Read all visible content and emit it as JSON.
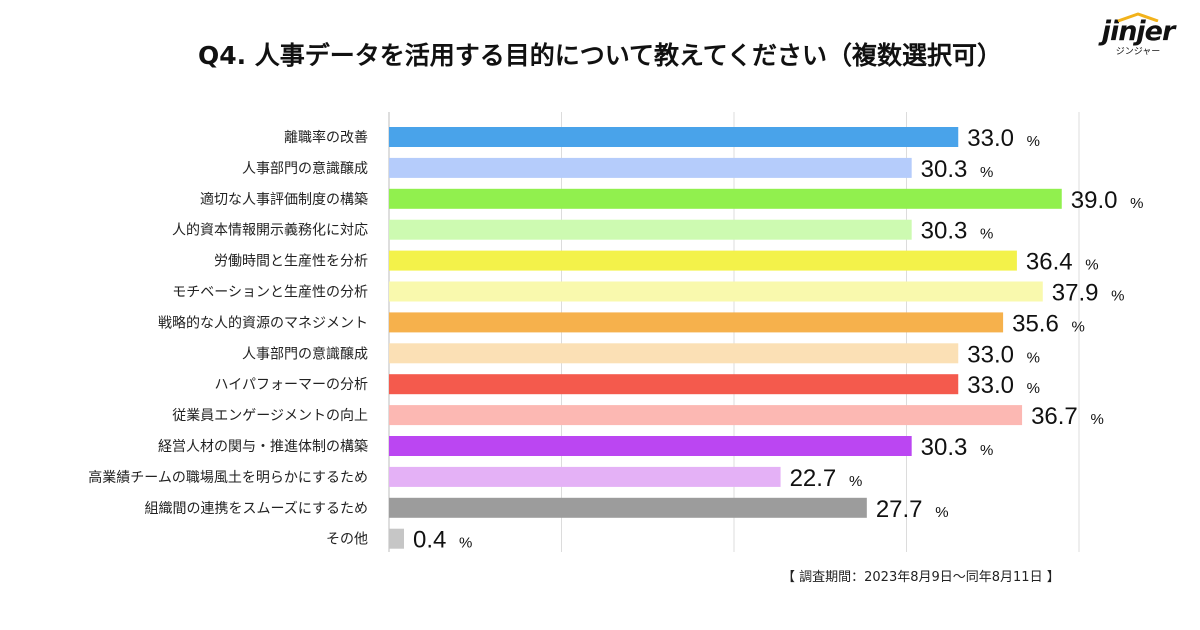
{
  "title": "Q4. 人事データを活用する目的について教えてください（複数選択可）",
  "logo": {
    "name": "jinjer",
    "sub": "ジンジャー"
  },
  "footer": {
    "note": "【 調査期間：2023年8月9日〜同年8月11日 】"
  },
  "chart_data": {
    "type": "bar",
    "orientation": "horizontal",
    "title": "Q4. 人事データを活用する目的について教えてください（複数選択可）",
    "xlabel": "",
    "ylabel": "",
    "xlim": [
      0,
      40
    ],
    "grid": true,
    "unit": "%",
    "categories": [
      "離職率の改善",
      "人事部門の意識醸成",
      "適切な人事評価制度の構築",
      "人的資本情報開示義務化に対応",
      "労働時間と生産性を分析",
      "モチベーションと生産性の分析",
      "戦略的な人的資源のマネジメント",
      "人事部門の意識醸成",
      "ハイパフォーマーの分析",
      "従業員エンゲージメントの向上",
      "経営人材の関与・推進体制の構築",
      "高業績チームの職場風土を明らかにするため",
      "組織間の連携をスムーズにするため",
      "その他"
    ],
    "values": [
      33.0,
      30.3,
      39.0,
      30.3,
      36.4,
      37.9,
      35.6,
      33.0,
      33.0,
      36.7,
      30.3,
      22.7,
      27.7,
      0.4
    ],
    "value_labels": [
      "33.0",
      "30.3",
      "39.0",
      "30.3",
      "36.4",
      "37.9",
      "35.6",
      "33.0",
      "33.0",
      "36.7",
      "30.3",
      "22.7",
      "27.7",
      "0.4"
    ],
    "colors": [
      "#49a3ea",
      "#b5ccfb",
      "#91f04e",
      "#cdfab1",
      "#f3f24a",
      "#f9f9ad",
      "#f6b14c",
      "#fbe0b5",
      "#f45a4d",
      "#fcb8b3",
      "#bb46f2",
      "#e4b1f6",
      "#9c9c9c",
      "#c6c6c6"
    ]
  }
}
